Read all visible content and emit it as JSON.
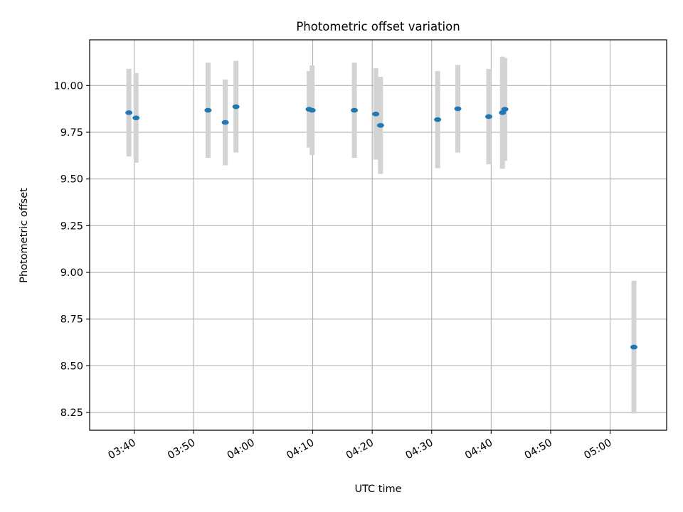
{
  "chart_data": {
    "type": "scatter",
    "title": "Photometric offset variation",
    "xlabel": "UTC time",
    "ylabel": "Photometric offset",
    "xlim_minutes": [
      212.5,
      309.5
    ],
    "ylim": [
      8.155,
      10.245
    ],
    "grid": true,
    "x_ticks": [
      {
        "minute": 220,
        "label": "03:40"
      },
      {
        "minute": 230,
        "label": "03:50"
      },
      {
        "minute": 240,
        "label": "04:00"
      },
      {
        "minute": 250,
        "label": "04:10"
      },
      {
        "minute": 260,
        "label": "04:20"
      },
      {
        "minute": 270,
        "label": "04:30"
      },
      {
        "minute": 280,
        "label": "04:40"
      },
      {
        "minute": 290,
        "label": "04:50"
      },
      {
        "minute": 300,
        "label": "05:00"
      }
    ],
    "y_ticks": [
      {
        "value": 8.25,
        "label": "8.25"
      },
      {
        "value": 8.5,
        "label": "8.50"
      },
      {
        "value": 8.75,
        "label": "8.75"
      },
      {
        "value": 9.0,
        "label": "9.00"
      },
      {
        "value": 9.25,
        "label": "9.25"
      },
      {
        "value": 9.5,
        "label": "9.50"
      },
      {
        "value": 9.75,
        "label": "9.75"
      },
      {
        "value": 10.0,
        "label": "10.00"
      }
    ],
    "colors": {
      "point": "#1f77b4",
      "errorbar": "#d3d3d3",
      "grid": "#b0b0b0"
    },
    "points": [
      {
        "minute": 219.1,
        "y": 9.855,
        "err": 0.235
      },
      {
        "minute": 220.3,
        "y": 9.827,
        "err": 0.24
      },
      {
        "minute": 232.4,
        "y": 9.868,
        "err": 0.255
      },
      {
        "minute": 235.3,
        "y": 9.803,
        "err": 0.23
      },
      {
        "minute": 237.1,
        "y": 9.887,
        "err": 0.245
      },
      {
        "minute": 249.4,
        "y": 9.873,
        "err": 0.205
      },
      {
        "minute": 249.9,
        "y": 9.868,
        "err": 0.24
      },
      {
        "minute": 257.0,
        "y": 9.868,
        "err": 0.255
      },
      {
        "minute": 260.6,
        "y": 9.848,
        "err": 0.245
      },
      {
        "minute": 261.4,
        "y": 9.787,
        "err": 0.26
      },
      {
        "minute": 271.0,
        "y": 9.818,
        "err": 0.26
      },
      {
        "minute": 274.4,
        "y": 9.876,
        "err": 0.235
      },
      {
        "minute": 279.6,
        "y": 9.834,
        "err": 0.255
      },
      {
        "minute": 281.9,
        "y": 9.855,
        "err": 0.3
      },
      {
        "minute": 282.3,
        "y": 9.873,
        "err": 0.275
      },
      {
        "minute": 304.0,
        "y": 8.6,
        "err": 0.355
      }
    ]
  }
}
